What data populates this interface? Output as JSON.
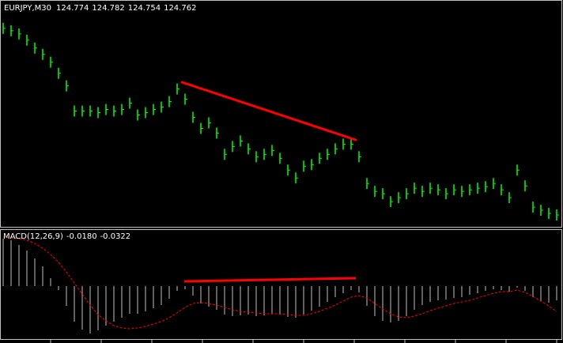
{
  "chart_data": [
    {
      "type": "bars",
      "title": "EURJPY,M30",
      "ohlc": [
        124.774,
        124.782,
        124.754,
        124.762
      ],
      "color": "#00ff00",
      "ylim": [
        124.687,
        126.122
      ],
      "values": [
        125.947,
        125.932,
        125.912,
        125.872,
        125.822,
        125.782,
        125.732,
        125.662,
        125.582,
        125.422,
        125.422,
        125.422,
        125.412,
        125.432,
        125.422,
        125.432,
        125.472,
        125.397,
        125.412,
        125.432,
        125.447,
        125.482,
        125.562,
        125.497,
        125.382,
        125.312,
        125.347,
        125.282,
        125.147,
        125.197,
        125.232,
        125.182,
        125.132,
        125.147,
        125.172,
        125.122,
        125.047,
        124.997,
        125.072,
        125.082,
        125.122,
        125.147,
        125.182,
        125.212,
        125.212,
        125.132,
        124.962,
        124.912,
        124.897,
        124.847,
        124.872,
        124.897,
        124.932,
        124.912,
        124.932,
        124.922,
        124.897,
        124.922,
        124.912,
        124.922,
        124.932,
        124.942,
        124.962,
        124.922,
        124.872,
        125.047,
        124.947,
        124.812,
        124.792,
        124.772,
        124.762
      ],
      "trendline": {
        "from": [
          22.5,
          125.607
        ],
        "to": [
          44.7,
          125.237
        ],
        "color": "#ff0000"
      }
    },
    {
      "type": "macd",
      "title": "MACD(12,26,9)",
      "last": [
        "-0.0180",
        "-0.0322"
      ],
      "ylim": [
        -0.068,
        0.07
      ],
      "series": [
        {
          "name": "MACD",
          "color": "#c0c0c0",
          "values": [
            0.06,
            0.058,
            0.052,
            0.045,
            0.035,
            0.025,
            0.01,
            -0.005,
            -0.025,
            -0.045,
            -0.055,
            -0.06,
            -0.056,
            -0.05,
            -0.045,
            -0.04,
            -0.035,
            -0.035,
            -0.032,
            -0.028,
            -0.024,
            -0.016,
            -0.006,
            -0.004,
            -0.012,
            -0.022,
            -0.026,
            -0.03,
            -0.036,
            -0.038,
            -0.037,
            -0.036,
            -0.038,
            -0.037,
            -0.035,
            -0.036,
            -0.039,
            -0.04,
            -0.036,
            -0.031,
            -0.026,
            -0.02,
            -0.014,
            -0.009,
            -0.005,
            -0.008,
            -0.025,
            -0.038,
            -0.044,
            -0.046,
            -0.044,
            -0.038,
            -0.03,
            -0.024,
            -0.02,
            -0.018,
            -0.017,
            -0.015,
            -0.014,
            -0.011,
            -0.009,
            -0.006,
            -0.004,
            -0.005,
            -0.007,
            -0.002,
            -0.006,
            -0.014,
            -0.019,
            -0.021,
            -0.018
          ]
        },
        {
          "name": "Signal",
          "color": "#ff0000",
          "values": [
            0.062,
            0.061,
            0.06,
            0.058,
            0.054,
            0.048,
            0.04,
            0.03,
            0.018,
            0.004,
            -0.01,
            -0.024,
            -0.036,
            -0.044,
            -0.05,
            -0.053,
            -0.054,
            -0.053,
            -0.051,
            -0.048,
            -0.045,
            -0.04,
            -0.034,
            -0.027,
            -0.022,
            -0.021,
            -0.022,
            -0.024,
            -0.027,
            -0.03,
            -0.032,
            -0.033,
            -0.034,
            -0.035,
            -0.035,
            -0.035,
            -0.036,
            -0.037,
            -0.037,
            -0.035,
            -0.032,
            -0.028,
            -0.024,
            -0.019,
            -0.014,
            -0.012,
            -0.015,
            -0.022,
            -0.029,
            -0.035,
            -0.039,
            -0.04,
            -0.038,
            -0.035,
            -0.031,
            -0.028,
            -0.025,
            -0.022,
            -0.02,
            -0.018,
            -0.015,
            -0.012,
            -0.009,
            -0.007,
            -0.007,
            -0.005,
            -0.008,
            -0.013,
            -0.019,
            -0.025,
            -0.0322
          ]
        }
      ],
      "trendline": {
        "from": [
          22.9,
          0.006
        ],
        "to": [
          44.6,
          0.01
        ],
        "color": "#ff0000"
      }
    }
  ]
}
